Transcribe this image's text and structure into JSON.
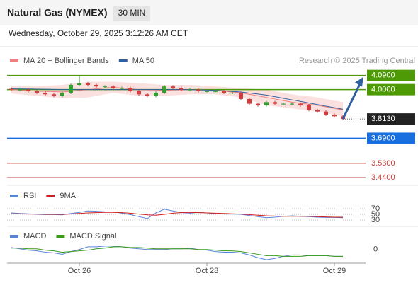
{
  "header": {
    "title": "Natural Gas (NYMEX)",
    "interval": "30 MIN",
    "timestamp": "Wednesday, October 29, 2025 3:12:26 AM CET"
  },
  "chart_data": [
    {
      "type": "candlestick",
      "source": "Research © 2025 Trading Central",
      "categories": [
        null,
        null,
        null,
        null,
        null,
        null,
        null,
        null,
        "Oct 26",
        null,
        null,
        null,
        null,
        null,
        null,
        null,
        null,
        null,
        null,
        null,
        null,
        null,
        null,
        "Oct 28",
        null,
        null,
        null,
        null,
        null,
        null,
        null,
        null,
        null,
        null,
        null,
        null,
        null,
        null,
        "Oct 29",
        null
      ],
      "open": [
        4.005,
        4.0,
        4.0,
        3.99,
        3.98,
        3.97,
        3.96,
        3.98,
        4.03,
        4.04,
        4.03,
        4.02,
        4.02,
        4.01,
        4.01,
        3.99,
        3.97,
        3.96,
        3.98,
        4.02,
        4.01,
        4.0,
        4.0,
        3.99,
        3.99,
        3.99,
        3.98,
        3.98,
        3.94,
        3.91,
        3.9,
        3.92,
        3.91,
        3.91,
        3.91,
        3.9,
        3.87,
        3.86,
        3.84,
        3.83
      ],
      "high": [
        4.013,
        4.008,
        4.008,
        3.998,
        3.988,
        3.978,
        3.988,
        4.038,
        4.09,
        4.048,
        4.038,
        4.028,
        4.028,
        4.018,
        4.018,
        3.998,
        3.978,
        3.988,
        4.028,
        4.028,
        4.018,
        4.008,
        4.008,
        3.998,
        3.998,
        3.998,
        3.988,
        3.988,
        3.948,
        3.918,
        3.928,
        3.928,
        3.918,
        3.918,
        3.918,
        3.908,
        3.878,
        3.868,
        3.848,
        3.838
      ],
      "low": [
        3.992,
        3.992,
        3.982,
        3.972,
        3.962,
        3.952,
        3.952,
        3.972,
        4.022,
        4.022,
        4.012,
        4.012,
        4.002,
        4.002,
        3.982,
        3.962,
        3.952,
        3.952,
        3.972,
        4.002,
        3.992,
        3.992,
        3.982,
        3.982,
        3.982,
        3.972,
        3.972,
        3.932,
        3.902,
        3.892,
        3.892,
        3.902,
        3.902,
        3.902,
        3.892,
        3.862,
        3.852,
        3.832,
        3.822,
        3.805
      ],
      "close": [
        4.0,
        4.0,
        3.99,
        3.98,
        3.97,
        3.96,
        3.98,
        4.03,
        4.04,
        4.03,
        4.02,
        4.02,
        4.01,
        4.01,
        3.99,
        3.97,
        3.96,
        3.98,
        4.02,
        4.01,
        4.0,
        4.0,
        3.99,
        3.99,
        3.99,
        3.98,
        3.98,
        3.94,
        3.91,
        3.9,
        3.92,
        3.91,
        3.91,
        3.91,
        3.9,
        3.87,
        3.86,
        3.84,
        3.83,
        3.813
      ],
      "up_color": "#2e9e2e",
      "down_color": "#d23c3c",
      "series": [
        {
          "name": "MA 20 + Bollinger Bands",
          "color": "#f08080",
          "band_color": "#f9cccc",
          "values": [
            4.0,
            3.997,
            3.993,
            3.99,
            3.988,
            3.987,
            3.985,
            3.99,
            3.995,
            4.0,
            4.005,
            4.01,
            4.015,
            4.01,
            4.005,
            4.0,
            3.998,
            3.997,
            3.995,
            3.997,
            3.998,
            4.0,
            3.998,
            3.997,
            3.995,
            3.99,
            3.985,
            3.98,
            3.97,
            3.96,
            3.95,
            3.94,
            3.93,
            3.92,
            3.913,
            3.907,
            3.9,
            3.89,
            3.88,
            3.87
          ],
          "upper": [
            4.025,
            4.023,
            4.022,
            4.02,
            4.023,
            4.027,
            4.03,
            4.037,
            4.043,
            4.05,
            4.05,
            4.05,
            4.05,
            4.047,
            4.043,
            4.04,
            4.037,
            4.033,
            4.03,
            4.03,
            4.03,
            4.03,
            4.027,
            4.023,
            4.02,
            4.017,
            4.013,
            4.01,
            4.007,
            4.003,
            4.0,
            3.99,
            3.98,
            3.97,
            3.963,
            3.957,
            3.95,
            3.94,
            3.93,
            3.92
          ],
          "lower": [
            3.975,
            3.97,
            3.965,
            3.96,
            3.955,
            3.95,
            3.945,
            3.947,
            3.948,
            3.95,
            3.96,
            3.97,
            3.98,
            3.973,
            3.967,
            3.96,
            3.96,
            3.96,
            3.96,
            3.963,
            3.967,
            3.97,
            3.97,
            3.97,
            3.97,
            3.963,
            3.957,
            3.95,
            3.933,
            3.917,
            3.9,
            3.893,
            3.887,
            3.88,
            3.873,
            3.867,
            3.86,
            3.85,
            3.84,
            3.83
          ]
        },
        {
          "name": "MA 50",
          "color": "#2f5f9e",
          "values": [
            4.005,
            4.004,
            4.004,
            4.003,
            4.002,
            4.001,
            4.0,
            4.0,
            4.0,
            4.0,
            4.0,
            4.0,
            4.0,
            4.0,
            4.0,
            4.0,
            4.0,
            4.0,
            4.0,
            4.0,
            4.0,
            4.0,
            3.998,
            3.997,
            3.995,
            3.992,
            3.988,
            3.985,
            3.978,
            3.972,
            3.965,
            3.955,
            3.945,
            3.935,
            3.925,
            3.915,
            3.905,
            3.895,
            3.885,
            3.875
          ]
        }
      ],
      "levels": [
        {
          "value": 4.09,
          "label": "4.0900",
          "color": "#4d9a06",
          "style": "box",
          "line": "solid"
        },
        {
          "value": 4.0,
          "label": "4.0000",
          "color": "#4d9a06",
          "style": "box",
          "line": "solid"
        },
        {
          "value": 3.813,
          "label": "3.8130",
          "color": "#222222",
          "style": "box",
          "line": "dotted"
        },
        {
          "value": 3.69,
          "label": "3.6900",
          "color": "#1a6fe0",
          "style": "box",
          "line": "solid"
        },
        {
          "value": 3.53,
          "label": "3.5300",
          "color": "#d23c3c",
          "style": "text",
          "line": "solid"
        },
        {
          "value": 3.44,
          "label": "3.4400",
          "color": "#d23c3c",
          "style": "text",
          "line": "solid"
        }
      ],
      "arrow_color": "#2f5f9e",
      "ylim": [
        3.39,
        4.12
      ]
    },
    {
      "type": "line",
      "series": [
        {
          "name": "RSI",
          "color": "#5b84d6",
          "values": [
            55,
            53,
            52,
            50,
            49,
            49,
            48,
            53,
            57,
            62,
            61,
            59,
            58,
            54,
            49,
            42,
            35,
            55,
            68,
            62,
            56,
            54,
            57,
            55,
            52,
            51,
            51,
            50,
            46,
            42,
            38,
            40,
            43,
            45,
            43,
            42,
            40,
            39,
            39,
            38
          ]
        },
        {
          "name": "9MA",
          "color": "#d21f1f",
          "values": [
            52,
            52,
            51,
            51,
            50,
            50,
            50,
            51,
            53,
            55,
            56,
            57,
            57,
            56,
            54,
            51,
            48,
            47,
            50,
            54,
            56,
            57,
            56,
            55,
            54,
            53,
            52,
            51,
            49,
            47,
            45,
            44,
            43,
            43,
            43,
            43,
            42,
            41,
            40,
            40
          ]
        }
      ],
      "ylim": [
        15,
        90
      ],
      "yticks": [
        70,
        50,
        30
      ],
      "grid": true
    },
    {
      "type": "line",
      "series": [
        {
          "name": "MACD",
          "color": "#5b84d6",
          "values": [
            0.003,
            0.001,
            -0.001,
            -0.002,
            -0.004,
            -0.005,
            -0.007,
            -0.003,
            0.0,
            0.004,
            0.004,
            0.005,
            0.005,
            0.004,
            0.002,
            0.001,
            0.0,
            0.0,
            0.0,
            0.001,
            0.001,
            0.002,
            0.0,
            -0.001,
            -0.003,
            -0.004,
            -0.004,
            -0.005,
            -0.008,
            -0.012,
            -0.015,
            -0.013,
            -0.01,
            -0.008,
            -0.008,
            -0.009,
            -0.009,
            -0.009,
            -0.01,
            -0.01
          ]
        },
        {
          "name": "MACD Signal",
          "color": "#3a9a1a",
          "values": [
            0.002,
            0.002,
            0.001,
            0.001,
            -0.001,
            -0.002,
            -0.004,
            -0.003,
            -0.002,
            -0.001,
            0.001,
            0.002,
            0.004,
            0.004,
            0.003,
            0.003,
            0.002,
            0.001,
            0.001,
            0.001,
            0.001,
            0.001,
            0.0,
            0.0,
            -0.001,
            -0.002,
            -0.002,
            -0.003,
            -0.005,
            -0.007,
            -0.009,
            -0.009,
            -0.01,
            -0.01,
            -0.01,
            -0.009,
            -0.009,
            -0.009,
            -0.01,
            -0.01
          ]
        }
      ],
      "ylim": [
        -0.018,
        0.032
      ],
      "yticks": [
        0
      ],
      "grid": false
    }
  ]
}
